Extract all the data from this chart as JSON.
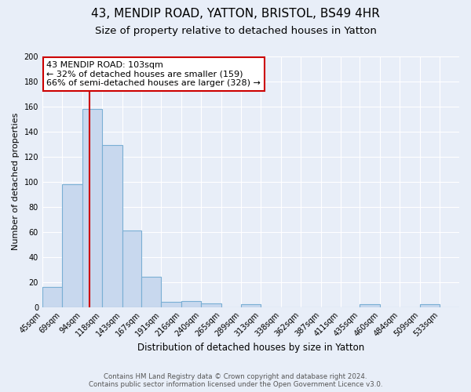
{
  "title": "43, MENDIP ROAD, YATTON, BRISTOL, BS49 4HR",
  "subtitle": "Size of property relative to detached houses in Yatton",
  "xlabel": "Distribution of detached houses by size in Yatton",
  "ylabel": "Number of detached properties",
  "bin_labels": [
    "45sqm",
    "69sqm",
    "94sqm",
    "118sqm",
    "143sqm",
    "167sqm",
    "191sqm",
    "216sqm",
    "240sqm",
    "265sqm",
    "289sqm",
    "313sqm",
    "338sqm",
    "362sqm",
    "387sqm",
    "411sqm",
    "435sqm",
    "460sqm",
    "484sqm",
    "509sqm",
    "533sqm"
  ],
  "bin_edges": [
    45,
    69,
    94,
    118,
    143,
    167,
    191,
    216,
    240,
    265,
    289,
    313,
    338,
    362,
    387,
    411,
    435,
    460,
    484,
    509,
    533,
    557
  ],
  "bar_heights": [
    16,
    98,
    158,
    129,
    61,
    24,
    4,
    5,
    3,
    0,
    2,
    0,
    0,
    0,
    0,
    0,
    2,
    0,
    0,
    2,
    0
  ],
  "bar_color": "#c8d8ee",
  "bar_edge_color": "#7aafd4",
  "vline_x": 103,
  "vline_color": "#cc0000",
  "annotation_title": "43 MENDIP ROAD: 103sqm",
  "annotation_line1": "← 32% of detached houses are smaller (159)",
  "annotation_line2": "66% of semi-detached houses are larger (328) →",
  "annotation_box_color": "#ffffff",
  "annotation_box_edge": "#cc0000",
  "ylim": [
    0,
    200
  ],
  "yticks": [
    0,
    20,
    40,
    60,
    80,
    100,
    120,
    140,
    160,
    180,
    200
  ],
  "bg_color": "#e8eef8",
  "footer_line1": "Contains HM Land Registry data © Crown copyright and database right 2024.",
  "footer_line2": "Contains public sector information licensed under the Open Government Licence v3.0.",
  "title_fontsize": 11,
  "subtitle_fontsize": 9.5
}
